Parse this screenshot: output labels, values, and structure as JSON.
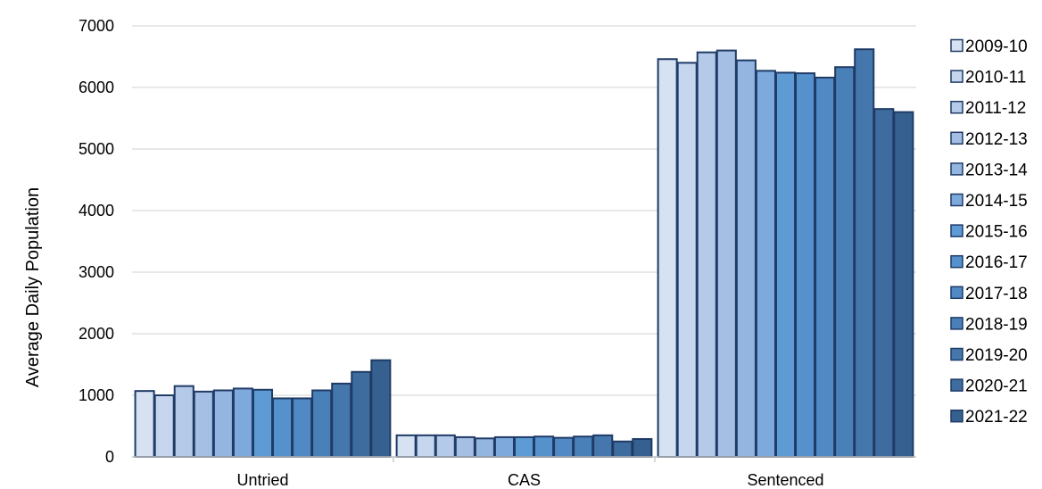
{
  "chart_data": {
    "type": "bar",
    "title": "",
    "xlabel": "",
    "ylabel": "Average Daily Population",
    "ylim": [
      0,
      7000
    ],
    "yticks": [
      0,
      1000,
      2000,
      3000,
      4000,
      5000,
      6000,
      7000
    ],
    "grid": true,
    "legend_position": "right",
    "categories": [
      "Untried",
      "CAS",
      "Sentenced"
    ],
    "series": [
      {
        "name": "2009-10",
        "color": "#D6E1F2",
        "values": [
          1070,
          350,
          6460
        ]
      },
      {
        "name": "2010-11",
        "color": "#C6D6EE",
        "values": [
          1000,
          350,
          6400
        ]
      },
      {
        "name": "2011-12",
        "color": "#B5CAE9",
        "values": [
          1150,
          350,
          6570
        ]
      },
      {
        "name": "2012-13",
        "color": "#A5BFE4",
        "values": [
          1060,
          320,
          6600
        ]
      },
      {
        "name": "2013-14",
        "color": "#94B5E0",
        "values": [
          1080,
          300,
          6440
        ]
      },
      {
        "name": "2014-15",
        "color": "#7EA9DD",
        "values": [
          1110,
          320,
          6270
        ]
      },
      {
        "name": "2015-16",
        "color": "#5E9BD5",
        "values": [
          1090,
          320,
          6240
        ]
      },
      {
        "name": "2016-17",
        "color": "#5592CD",
        "values": [
          950,
          330,
          6230
        ]
      },
      {
        "name": "2017-18",
        "color": "#5089C4",
        "values": [
          950,
          310,
          6160
        ]
      },
      {
        "name": "2018-19",
        "color": "#4A80B8",
        "values": [
          1080,
          330,
          6330
        ]
      },
      {
        "name": "2019-20",
        "color": "#4577AC",
        "values": [
          1190,
          350,
          6620
        ]
      },
      {
        "name": "2020-21",
        "color": "#3F6C9E",
        "values": [
          1380,
          250,
          5650
        ]
      },
      {
        "name": "2021-22",
        "color": "#36608F",
        "values": [
          1570,
          290,
          5600
        ]
      }
    ],
    "bar_stroke_color": "#1F3B66",
    "grid_color": "#D9D9D9"
  }
}
